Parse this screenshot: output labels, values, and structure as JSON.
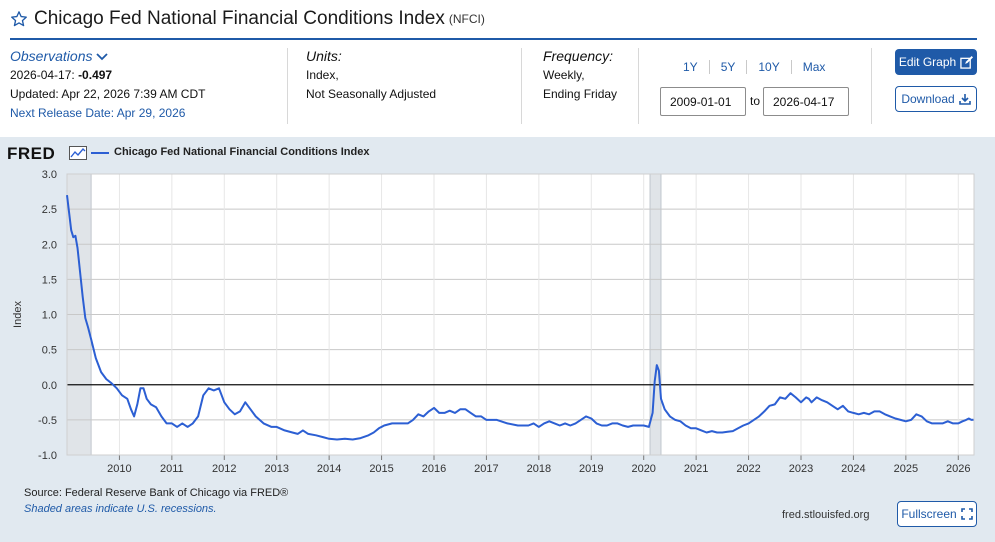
{
  "header": {
    "title": "Chicago Fed National Financial Conditions Index",
    "series_id": "(NFCI)"
  },
  "observations": {
    "toggle_label": "Observations",
    "latest_date": "2026-04-17:",
    "latest_value": "-0.497",
    "updated": "Updated: Apr 22, 2026 7:39 AM CDT",
    "next_release": "Next Release Date: Apr 29, 2026"
  },
  "units": {
    "label": "Units:",
    "line1": "Index,",
    "line2": "Not Seasonally Adjusted"
  },
  "frequency": {
    "label": "Frequency:",
    "line1": "Weekly,",
    "line2": "Ending Friday"
  },
  "range_buttons": [
    "1Y",
    "5Y",
    "10Y",
    "Max"
  ],
  "date_range": {
    "start": "2009-01-01",
    "to_label": "to",
    "end": "2026-04-17"
  },
  "buttons": {
    "edit": "Edit Graph",
    "download": "Download",
    "fullscreen": "Fullscreen"
  },
  "graph": {
    "logo": "FRED",
    "legend": "Chicago Fed National Financial Conditions Index",
    "source": "Source: Federal Reserve Bank of Chicago via FRED®",
    "shaded_note": "Shaded areas indicate U.S. recessions.",
    "url": "fred.stlouisfed.org"
  },
  "colors": {
    "accent": "#1f5aa8",
    "series": "#2c5fd3",
    "plot_background": "#ffffff",
    "recession_shading": "#e0e4e8"
  },
  "chart_data": {
    "type": "line",
    "ylabel": "Index",
    "ylim": [
      -1.0,
      3.0
    ],
    "yticks": [
      -1.0,
      -0.5,
      0.0,
      0.5,
      1.0,
      1.5,
      2.0,
      2.5,
      3.0
    ],
    "xlim": [
      2009.0,
      2026.3
    ],
    "xticks": [
      2010,
      2011,
      2012,
      2013,
      2014,
      2015,
      2016,
      2017,
      2018,
      2019,
      2020,
      2021,
      2022,
      2023,
      2024,
      2025,
      2026
    ],
    "grid": true,
    "zero_line": true,
    "recessions": [
      [
        2009.0,
        2009.46
      ],
      [
        2020.12,
        2020.33
      ]
    ],
    "series": [
      {
        "name": "Chicago Fed National Financial Conditions Index",
        "points": [
          [
            2009.0,
            2.7
          ],
          [
            2009.04,
            2.45
          ],
          [
            2009.08,
            2.2
          ],
          [
            2009.12,
            2.1
          ],
          [
            2009.16,
            2.12
          ],
          [
            2009.2,
            1.95
          ],
          [
            2009.25,
            1.6
          ],
          [
            2009.3,
            1.25
          ],
          [
            2009.35,
            0.95
          ],
          [
            2009.4,
            0.82
          ],
          [
            2009.46,
            0.65
          ],
          [
            2009.55,
            0.38
          ],
          [
            2009.65,
            0.18
          ],
          [
            2009.75,
            0.08
          ],
          [
            2009.85,
            0.02
          ],
          [
            2009.95,
            -0.05
          ],
          [
            2010.05,
            -0.15
          ],
          [
            2010.15,
            -0.2
          ],
          [
            2010.22,
            -0.35
          ],
          [
            2010.28,
            -0.45
          ],
          [
            2010.34,
            -0.28
          ],
          [
            2010.4,
            -0.05
          ],
          [
            2010.46,
            -0.05
          ],
          [
            2010.52,
            -0.2
          ],
          [
            2010.6,
            -0.28
          ],
          [
            2010.7,
            -0.32
          ],
          [
            2010.8,
            -0.45
          ],
          [
            2010.9,
            -0.55
          ],
          [
            2011.0,
            -0.55
          ],
          [
            2011.1,
            -0.6
          ],
          [
            2011.2,
            -0.55
          ],
          [
            2011.3,
            -0.6
          ],
          [
            2011.4,
            -0.55
          ],
          [
            2011.5,
            -0.45
          ],
          [
            2011.6,
            -0.15
          ],
          [
            2011.7,
            -0.05
          ],
          [
            2011.8,
            -0.08
          ],
          [
            2011.9,
            -0.05
          ],
          [
            2012.0,
            -0.25
          ],
          [
            2012.1,
            -0.35
          ],
          [
            2012.2,
            -0.42
          ],
          [
            2012.3,
            -0.38
          ],
          [
            2012.4,
            -0.25
          ],
          [
            2012.5,
            -0.35
          ],
          [
            2012.6,
            -0.45
          ],
          [
            2012.75,
            -0.55
          ],
          [
            2012.9,
            -0.6
          ],
          [
            2013.0,
            -0.6
          ],
          [
            2013.15,
            -0.65
          ],
          [
            2013.3,
            -0.68
          ],
          [
            2013.4,
            -0.7
          ],
          [
            2013.5,
            -0.65
          ],
          [
            2013.6,
            -0.7
          ],
          [
            2013.75,
            -0.72
          ],
          [
            2013.9,
            -0.75
          ],
          [
            2014.0,
            -0.77
          ],
          [
            2014.15,
            -0.78
          ],
          [
            2014.3,
            -0.77
          ],
          [
            2014.45,
            -0.78
          ],
          [
            2014.6,
            -0.76
          ],
          [
            2014.75,
            -0.72
          ],
          [
            2014.85,
            -0.68
          ],
          [
            2014.95,
            -0.62
          ],
          [
            2015.05,
            -0.58
          ],
          [
            2015.2,
            -0.55
          ],
          [
            2015.35,
            -0.55
          ],
          [
            2015.5,
            -0.55
          ],
          [
            2015.6,
            -0.5
          ],
          [
            2015.7,
            -0.42
          ],
          [
            2015.8,
            -0.45
          ],
          [
            2015.9,
            -0.38
          ],
          [
            2016.0,
            -0.33
          ],
          [
            2016.1,
            -0.4
          ],
          [
            2016.2,
            -0.4
          ],
          [
            2016.3,
            -0.37
          ],
          [
            2016.4,
            -0.4
          ],
          [
            2016.5,
            -0.35
          ],
          [
            2016.6,
            -0.35
          ],
          [
            2016.7,
            -0.4
          ],
          [
            2016.8,
            -0.45
          ],
          [
            2016.9,
            -0.45
          ],
          [
            2017.0,
            -0.5
          ],
          [
            2017.2,
            -0.5
          ],
          [
            2017.4,
            -0.55
          ],
          [
            2017.6,
            -0.58
          ],
          [
            2017.8,
            -0.58
          ],
          [
            2017.9,
            -0.55
          ],
          [
            2018.0,
            -0.6
          ],
          [
            2018.1,
            -0.55
          ],
          [
            2018.2,
            -0.52
          ],
          [
            2018.3,
            -0.55
          ],
          [
            2018.4,
            -0.58
          ],
          [
            2018.5,
            -0.55
          ],
          [
            2018.6,
            -0.58
          ],
          [
            2018.7,
            -0.55
          ],
          [
            2018.8,
            -0.5
          ],
          [
            2018.9,
            -0.45
          ],
          [
            2019.0,
            -0.48
          ],
          [
            2019.1,
            -0.55
          ],
          [
            2019.2,
            -0.58
          ],
          [
            2019.3,
            -0.58
          ],
          [
            2019.4,
            -0.55
          ],
          [
            2019.5,
            -0.55
          ],
          [
            2019.6,
            -0.58
          ],
          [
            2019.7,
            -0.6
          ],
          [
            2019.8,
            -0.58
          ],
          [
            2019.9,
            -0.58
          ],
          [
            2020.0,
            -0.58
          ],
          [
            2020.1,
            -0.6
          ],
          [
            2020.17,
            -0.4
          ],
          [
            2020.21,
            0.05
          ],
          [
            2020.25,
            0.28
          ],
          [
            2020.29,
            0.2
          ],
          [
            2020.33,
            -0.2
          ],
          [
            2020.4,
            -0.35
          ],
          [
            2020.5,
            -0.45
          ],
          [
            2020.6,
            -0.5
          ],
          [
            2020.7,
            -0.52
          ],
          [
            2020.8,
            -0.58
          ],
          [
            2020.9,
            -0.62
          ],
          [
            2021.0,
            -0.62
          ],
          [
            2021.1,
            -0.65
          ],
          [
            2021.2,
            -0.68
          ],
          [
            2021.3,
            -0.66
          ],
          [
            2021.4,
            -0.68
          ],
          [
            2021.5,
            -0.68
          ],
          [
            2021.6,
            -0.67
          ],
          [
            2021.7,
            -0.66
          ],
          [
            2021.8,
            -0.62
          ],
          [
            2021.9,
            -0.58
          ],
          [
            2022.0,
            -0.55
          ],
          [
            2022.1,
            -0.5
          ],
          [
            2022.2,
            -0.45
          ],
          [
            2022.3,
            -0.38
          ],
          [
            2022.4,
            -0.3
          ],
          [
            2022.5,
            -0.28
          ],
          [
            2022.6,
            -0.18
          ],
          [
            2022.7,
            -0.2
          ],
          [
            2022.8,
            -0.12
          ],
          [
            2022.9,
            -0.18
          ],
          [
            2023.0,
            -0.25
          ],
          [
            2023.1,
            -0.18
          ],
          [
            2023.15,
            -0.2
          ],
          [
            2023.2,
            -0.25
          ],
          [
            2023.3,
            -0.18
          ],
          [
            2023.4,
            -0.22
          ],
          [
            2023.5,
            -0.25
          ],
          [
            2023.6,
            -0.3
          ],
          [
            2023.7,
            -0.35
          ],
          [
            2023.8,
            -0.3
          ],
          [
            2023.9,
            -0.38
          ],
          [
            2024.0,
            -0.4
          ],
          [
            2024.1,
            -0.42
          ],
          [
            2024.2,
            -0.4
          ],
          [
            2024.3,
            -0.42
          ],
          [
            2024.4,
            -0.38
          ],
          [
            2024.5,
            -0.38
          ],
          [
            2024.6,
            -0.42
          ],
          [
            2024.7,
            -0.45
          ],
          [
            2024.8,
            -0.48
          ],
          [
            2024.9,
            -0.5
          ],
          [
            2025.0,
            -0.52
          ],
          [
            2025.1,
            -0.5
          ],
          [
            2025.2,
            -0.42
          ],
          [
            2025.3,
            -0.45
          ],
          [
            2025.4,
            -0.52
          ],
          [
            2025.5,
            -0.55
          ],
          [
            2025.6,
            -0.55
          ],
          [
            2025.7,
            -0.55
          ],
          [
            2025.8,
            -0.52
          ],
          [
            2025.9,
            -0.55
          ],
          [
            2026.0,
            -0.55
          ],
          [
            2026.08,
            -0.52
          ],
          [
            2026.15,
            -0.5
          ],
          [
            2026.2,
            -0.48
          ],
          [
            2026.25,
            -0.5
          ],
          [
            2026.29,
            -0.497
          ]
        ]
      }
    ]
  }
}
